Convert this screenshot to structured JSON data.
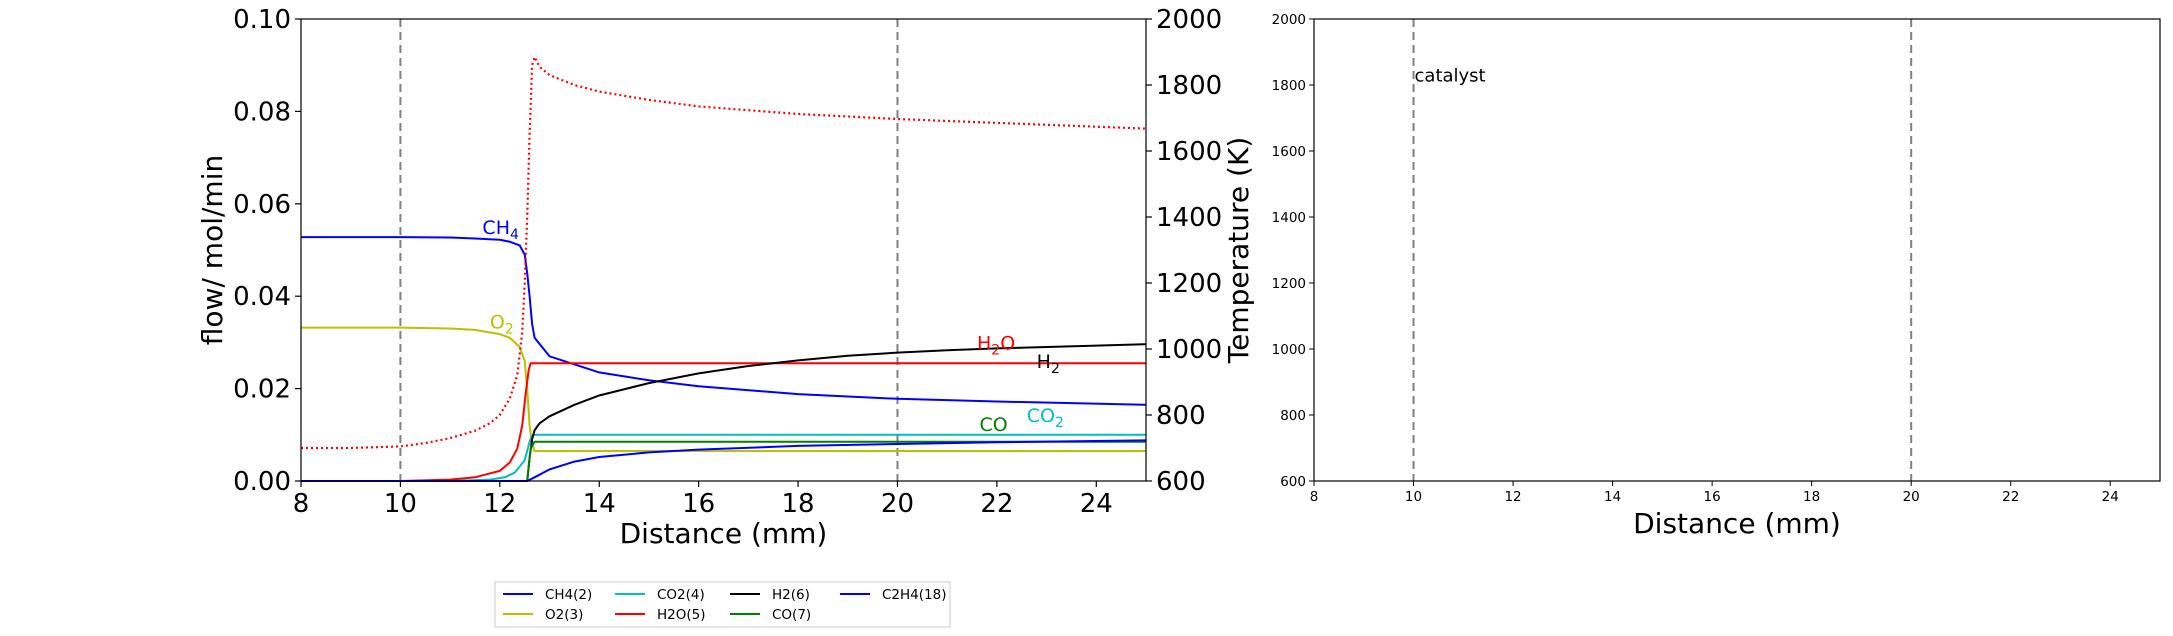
{
  "chart_data": [
    {
      "type": "line",
      "xlabel": "Distance (mm)",
      "ylabel": "flow/ mol/min",
      "ylabel_right": "Temperature (K)",
      "xlim": [
        8,
        25
      ],
      "ylim": [
        0,
        0.1
      ],
      "ylim_right": [
        600,
        2000
      ],
      "xticks": [
        "8",
        "10",
        "12",
        "14",
        "16",
        "18",
        "20",
        "22",
        "24"
      ],
      "yticks": [
        "0.00",
        "0.02",
        "0.04",
        "0.06",
        "0.08",
        "0.10"
      ],
      "yticks_right": [
        "600",
        "800",
        "1000",
        "1200",
        "1400",
        "1600",
        "1800",
        "2000"
      ],
      "vlines": [
        10,
        20
      ],
      "grid": false,
      "series": [
        {
          "name": "CH4(2)",
          "color": "#0000ff",
          "style": "solid",
          "x": [
            8,
            10,
            11,
            11.5,
            12,
            12.2,
            12.4,
            12.5,
            12.55,
            12.6,
            12.65,
            12.7,
            13,
            14,
            15,
            16,
            18,
            20,
            22,
            25
          ],
          "y": [
            0.0528,
            0.0528,
            0.0527,
            0.0525,
            0.0522,
            0.0518,
            0.051,
            0.049,
            0.045,
            0.04,
            0.034,
            0.031,
            0.027,
            0.0235,
            0.0218,
            0.0205,
            0.0188,
            0.0178,
            0.0172,
            0.0165
          ]
        },
        {
          "name": "O2(3)",
          "color": "#bfbf00",
          "style": "solid",
          "x": [
            8,
            10,
            11,
            11.5,
            12,
            12.2,
            12.4,
            12.5,
            12.55,
            12.6,
            12.65,
            12.7,
            14,
            18,
            20,
            25
          ],
          "y": [
            0.0332,
            0.0332,
            0.033,
            0.0327,
            0.0318,
            0.031,
            0.029,
            0.026,
            0.02,
            0.012,
            0.008,
            0.0065,
            0.0065,
            0.0065,
            0.0065,
            0.0065
          ]
        },
        {
          "name": "CO2(4)",
          "color": "#00bfbf",
          "style": "solid",
          "x": [
            8,
            11,
            11.8,
            12.1,
            12.3,
            12.5,
            12.6,
            12.65,
            12.7,
            13,
            14,
            18,
            20,
            25
          ],
          "y": [
            0,
            0,
            0.0003,
            0.0008,
            0.0018,
            0.0045,
            0.0085,
            0.0098,
            0.01,
            0.01,
            0.01,
            0.01,
            0.01,
            0.01
          ]
        },
        {
          "name": "H2O(5)",
          "color": "#ff0000",
          "style": "solid",
          "x": [
            8,
            10,
            11,
            11.5,
            12,
            12.2,
            12.35,
            12.45,
            12.52,
            12.58,
            12.62,
            12.7,
            14,
            18,
            20,
            25
          ],
          "y": [
            0,
            0,
            0.0003,
            0.0008,
            0.0022,
            0.004,
            0.007,
            0.012,
            0.019,
            0.024,
            0.0255,
            0.0255,
            0.0255,
            0.0255,
            0.0255,
            0.0255
          ]
        },
        {
          "name": "H2(6)",
          "color": "#000000",
          "style": "solid",
          "x": [
            8,
            12.55,
            12.6,
            12.65,
            12.7,
            12.8,
            13,
            13.5,
            14,
            15,
            16,
            17,
            18,
            19,
            20,
            21,
            22,
            23,
            24,
            25
          ],
          "y": [
            0,
            0,
            0.005,
            0.009,
            0.011,
            0.0125,
            0.014,
            0.0165,
            0.0185,
            0.0212,
            0.0233,
            0.0249,
            0.0261,
            0.0271,
            0.0278,
            0.0283,
            0.0287,
            0.029,
            0.0293,
            0.0296
          ]
        },
        {
          "name": "CO(7)",
          "color": "#008000",
          "style": "solid",
          "x": [
            8,
            12.55,
            12.62,
            12.7,
            14,
            18,
            20,
            25
          ],
          "y": [
            0,
            0,
            0.007,
            0.0085,
            0.0085,
            0.0085,
            0.0085,
            0.0085
          ]
        },
        {
          "name": "C2H4(18)",
          "color": "#0000ff",
          "style": "solid",
          "x": [
            8,
            12.55,
            12.7,
            13,
            13.5,
            14,
            15,
            16,
            18,
            20,
            22,
            25
          ],
          "y": [
            0,
            0,
            0.0008,
            0.0025,
            0.0042,
            0.0052,
            0.0062,
            0.0068,
            0.0076,
            0.008,
            0.0084,
            0.0088
          ]
        },
        {
          "name": "",
          "color": "#ff0000",
          "style": "dotted",
          "axis": "right",
          "x": [
            8,
            9,
            10,
            10.5,
            11,
            11.5,
            11.8,
            12,
            12.2,
            12.35,
            12.45,
            12.5,
            12.55,
            12.6,
            12.65,
            12.7,
            12.8,
            13,
            13.5,
            14,
            15,
            16,
            18,
            20,
            22,
            25
          ],
          "y": [
            700,
            700,
            705,
            715,
            730,
            752,
            775,
            800,
            850,
            920,
            1050,
            1200,
            1400,
            1650,
            1860,
            1885,
            1855,
            1830,
            1800,
            1780,
            1755,
            1735,
            1712,
            1697,
            1685,
            1668
          ]
        }
      ],
      "annotations": [
        {
          "text": "CH",
          "sub": "4",
          "x": 11.65,
          "y": 0.0535,
          "color": "#0000ff"
        },
        {
          "text": "O",
          "sub": "2",
          "x": 11.8,
          "y": 0.033,
          "color": "#bfbf00"
        },
        {
          "text": "H",
          "sub": "2",
          "post": "O",
          "x": 21.6,
          "y": 0.0285,
          "color": "#ff0000"
        },
        {
          "text": "H",
          "sub": "2",
          "x": 22.8,
          "y": 0.0245,
          "color": "#000000"
        },
        {
          "text": "CO",
          "sub": "2",
          "x": 22.6,
          "y": 0.0128,
          "color": "#00bfbf"
        },
        {
          "text": "CO",
          "x": 21.65,
          "y": 0.0108,
          "color": "#008000"
        }
      ],
      "legend": {
        "placement": "bottom-center",
        "ncol": 4
      }
    },
    {
      "type": "line",
      "xlabel": "Distance (mm)",
      "ylabel": "",
      "xlim": [
        8,
        25
      ],
      "ylim": [
        600,
        2000
      ],
      "xticks": [
        "8",
        "10",
        "12",
        "14",
        "16",
        "18",
        "20",
        "22",
        "24"
      ],
      "yticks": [
        "600",
        "800",
        "1000",
        "1200",
        "1400",
        "1600",
        "1800",
        "2000"
      ],
      "vlines": [
        10,
        20
      ],
      "grid": false,
      "series": [],
      "annotations": [
        {
          "text": "catalyst",
          "x": 10.0,
          "y": 1810,
          "color": "#000000"
        }
      ]
    }
  ]
}
